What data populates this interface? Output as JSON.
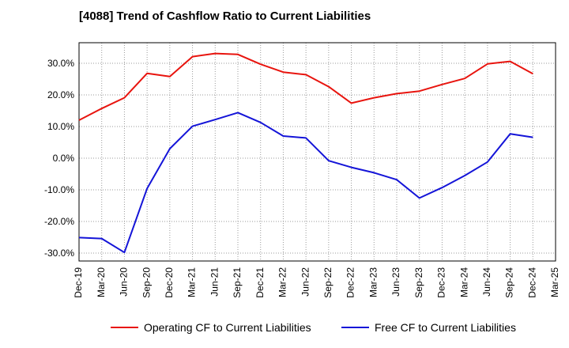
{
  "title": "[4088]  Trend of Cashflow Ratio to Current Liabilities",
  "chart_data": {
    "type": "line",
    "title": "[4088]  Trend of Cashflow Ratio to Current Liabilities",
    "categories": [
      "Dec-19",
      "Mar-20",
      "Jun-20",
      "Sep-20",
      "Dec-20",
      "Mar-21",
      "Jun-21",
      "Sep-21",
      "Dec-21",
      "Mar-22",
      "Jun-22",
      "Sep-22",
      "Dec-22",
      "Mar-23",
      "Jun-23",
      "Sep-23",
      "Dec-23",
      "Mar-24",
      "Jun-24",
      "Sep-24",
      "Dec-24",
      "Mar-25"
    ],
    "y_ticks": [
      "30.0%",
      "20.0%",
      "10.0%",
      "0.0%",
      "-10.0%",
      "-20.0%",
      "-30.0%"
    ],
    "y_tick_values": [
      30,
      20,
      10,
      0,
      -10,
      -20,
      -30
    ],
    "ylim": [
      -32.5,
      36.5
    ],
    "grid": true,
    "legend_position": "bottom",
    "series": [
      {
        "name": "Operating CF to Current Liabilities",
        "color": "#e8140e",
        "values": [
          12.0,
          15.7,
          19.1,
          26.8,
          25.8,
          32.1,
          33.1,
          32.8,
          29.7,
          27.2,
          26.4,
          22.6,
          17.4,
          19.1,
          20.4,
          21.2,
          23.3,
          25.2,
          29.8,
          30.6,
          26.7,
          null
        ]
      },
      {
        "name": "Free CF to Current Liabilities",
        "color": "#1414d8",
        "values": [
          -25.1,
          -25.4,
          -29.8,
          -9.6,
          3.0,
          10.1,
          12.2,
          14.4,
          11.3,
          7.0,
          6.4,
          -0.8,
          -2.9,
          -4.6,
          -6.8,
          -12.6,
          -9.3,
          -5.5,
          -1.2,
          7.7,
          6.6,
          null
        ]
      }
    ]
  }
}
